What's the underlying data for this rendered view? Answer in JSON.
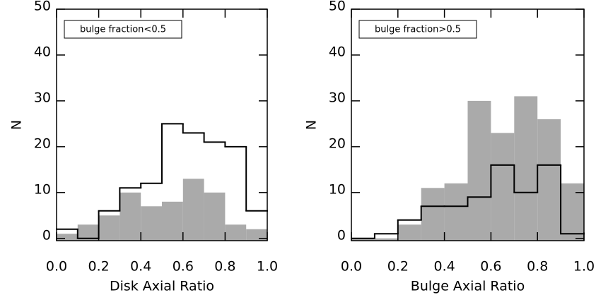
{
  "chart_data": [
    {
      "type": "histogram",
      "xlabel": "Disk Axial Ratio",
      "ylabel": "N",
      "annotation": "bulge fraction<0.5",
      "bins": [
        0.0,
        0.1,
        0.2,
        0.3,
        0.4,
        0.5,
        0.6,
        0.7,
        0.8,
        0.9,
        1.0
      ],
      "series": [
        {
          "color": "#aaaaaa",
          "style": "filled",
          "values": [
            1,
            3,
            5,
            10,
            7,
            8,
            13,
            10,
            3,
            2
          ]
        },
        {
          "color": "#000000",
          "style": "step",
          "values": [
            2,
            0,
            6,
            11,
            12,
            25,
            23,
            21,
            20,
            6
          ]
        }
      ],
      "xlim": [
        0,
        1
      ],
      "ylim": [
        -0.5,
        50
      ],
      "xticks": [
        {
          "value": 0,
          "label": "0.0"
        },
        0.2,
        0.4,
        0.6,
        0.8,
        {
          "value": 1,
          "label": "1.0"
        }
      ],
      "yticks": [
        0,
        10,
        20,
        30,
        40,
        50
      ]
    },
    {
      "type": "histogram",
      "xlabel": "Bulge Axial Ratio",
      "ylabel": "N",
      "annotation": "bulge fraction>0.5",
      "bins": [
        0.0,
        0.1,
        0.2,
        0.3,
        0.4,
        0.5,
        0.6,
        0.7,
        0.8,
        0.9,
        1.0
      ],
      "series": [
        {
          "color": "#aaaaaa",
          "style": "filled",
          "values": [
            0,
            0,
            3,
            11,
            12,
            30,
            23,
            31,
            26,
            12
          ]
        },
        {
          "color": "#000000",
          "style": "step",
          "values": [
            0,
            1,
            4,
            7,
            7,
            9,
            16,
            10,
            16,
            1
          ]
        }
      ],
      "xlim": [
        0,
        1
      ],
      "ylim": [
        -0.5,
        50
      ],
      "xticks": [
        {
          "value": 0,
          "label": "0.0"
        },
        0.2,
        0.4,
        0.6,
        0.8,
        {
          "value": 1,
          "label": "1.0"
        }
      ],
      "yticks": [
        0,
        10,
        20,
        30,
        40,
        50
      ]
    }
  ]
}
